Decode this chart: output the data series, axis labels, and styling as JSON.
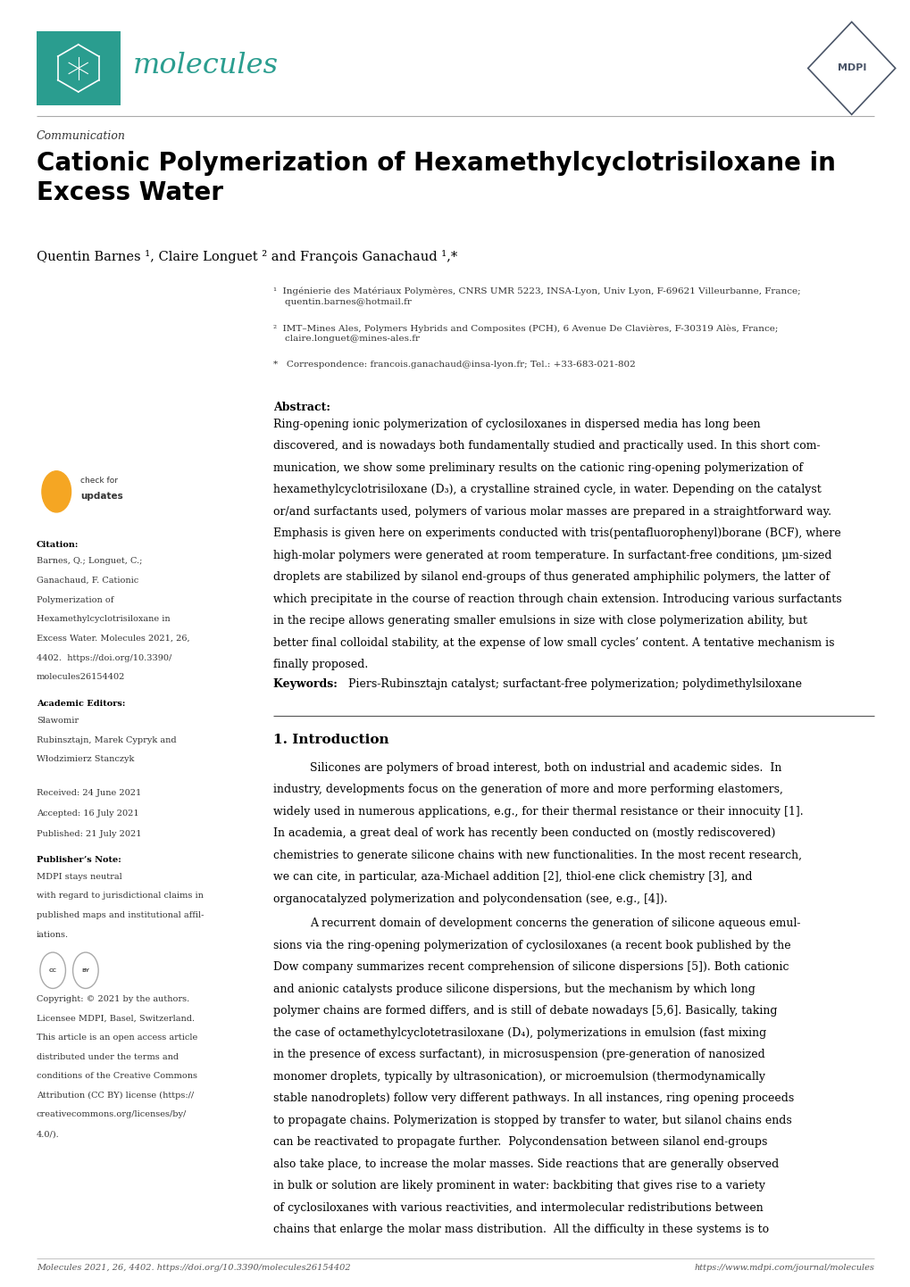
{
  "page_width": 10.2,
  "page_height": 14.42,
  "bg_color": "#ffffff",
  "header": {
    "journal_name": "molecules",
    "journal_color": "#2a9d8f",
    "journal_box_color": "#2a9d8f",
    "separator_color": "#999999",
    "mdpi_color": "#4a5568"
  },
  "article_type": "Communication",
  "title": "Cationic Polymerization of Hexamethylcyclotrisiloxane in\nExcess Water",
  "authors": "Quentin Barnes ¹, Claire Longuet ² and François Ganachaud ¹,*",
  "affiliations": [
    "¹  Ingénierie des Matériaux Polymères, CNRS UMR 5223, INSA-Lyon, Univ Lyon, F-69621 Villeurbanne, France;\n    quentin.barnes@hotmail.fr",
    "²  IMT–Mines Ales, Polymers Hybrids and Composites (PCH), 6 Avenue De Clavières, F-30319 Alès, France;\n    claire.longuet@mines-ales.fr",
    "*   Correspondence: francois.ganachaud@insa-lyon.fr; Tel.: +33-683-021-802"
  ],
  "abstract_label": "Abstract:",
  "abstract_text": "Ring-opening ionic polymerization of cyclosiloxanes in dispersed media has long been discovered, and is nowadays both fundamentally studied and practically used. In this short communication, we show some preliminary results on the cationic ring-opening polymerization of hexamethylcyclotrisiloxane (D₃), a crystalline strained cycle, in water. Depending on the catalyst or/and surfactants used, polymers of various molar masses are prepared in a straightforward way. Emphasis is given here on experiments conducted with tris(pentafluorophenyl)borane (BCF), where high-molar polymers were generated at room temperature. In surfactant-free conditions, μm-sized droplets are stabilized by silanol end-groups of thus generated amphiphilic polymers, the latter of which precipitate in the course of reaction through chain extension. Introducing various surfactants in the recipe allows generating smaller emulsions in size with close polymerization ability, but better final colloidal stability, at the expense of low small cycles’ content. A tentative mechanism is finally proposed.",
  "keywords_label": "Keywords:",
  "keywords_text": "Piers-Rubinsztajn catalyst; surfactant-free polymerization; polydimethylsiloxane",
  "section1_title": "1. Introduction",
  "section1_para1": "Silicones are polymers of broad interest, both on industrial and academic sides.  In industry, developments focus on the generation of more and more performing elastomers, widely used in numerous applications, e.g., for their thermal resistance or their innocuity [1]. In academia, a great deal of work has recently been conducted on (mostly rediscovered) chemistries to generate silicone chains with new functionalities. In the most recent research, we can cite, in particular, aza-Michael addition [2], thiol-ene click chemistry [3], and organocatalyzed polymerization and polycondensation (see, e.g., [4]).",
  "section1_para2": "A recurrent domain of development concerns the generation of silicone aqueous emulsions via the ring-opening polymerization of cyclosiloxanes (a recent book published by the Dow company summarizes recent comprehension of silicone dispersions [5]). Both cationic and anionic catalysts produce silicone dispersions, but the mechanism by which long polymer chains are formed differs, and is still of debate nowadays [5,6]. Basically, taking the case of octamethylcyclotetrasiloxane (D₄), polymerizations in emulsion (fast mixing in the presence of excess surfactant), in microsuspension (pre-generation of nanosized monomer droplets, typically by ultrasonication), or microemulsion (thermodynamically stable nanodroplets) follow very different pathways. In all instances, ring opening proceeds to propagate chains. Polymerization is stopped by transfer to water, but silanol chains ends can be reactivated to propagate further.  Polycondensation between silanol end-groups also take place, to increase the molar masses. Side reactions that are generally observed in bulk or solution are likely prominent in water: backbiting that gives rise to a variety of cyclosiloxanes with various reactivities, and intermolecular redistributions between chains that enlarge the molar mass distribution.  All the difficulty in these systems is to",
  "sidebar": {
    "citation_label": "Citation:",
    "citation_text": "Barnes, Q.; Longuet, C.; Ganachaud, F. Cationic Polymerization of Hexamethylcyclotrisiloxane in Excess Water. Molecules 2021, 26, 4402. https://doi.org/10.3390/molecules26154402",
    "editors_label": "Academic Editors:",
    "editors_text": "Sławomir Rubinsztajn, Marek Cypryk and Włodzimierz Stanczyk",
    "received": "Received: 24 June 2021",
    "accepted": "Accepted: 16 July 2021",
    "published": "Published: 21 July 2021",
    "publisher_note_label": "Publisher’s Note:",
    "publisher_note_text": "MDPI stays neutral with regard to jurisdictional claims in published maps and institutional affiliations.",
    "copyright_text": "Copyright: © 2021 by the authors. Licensee MDPI, Basel, Switzerland. This article is an open access article distributed under the terms and conditions of the Creative Commons Attribution (CC BY) license (https://creativecommons.org/licenses/by/4.0/)."
  },
  "footer_left": "Molecules 2021, 26, 4402. https://doi.org/10.3390/molecules26154402",
  "footer_right": "https://www.mdpi.com/journal/molecules"
}
